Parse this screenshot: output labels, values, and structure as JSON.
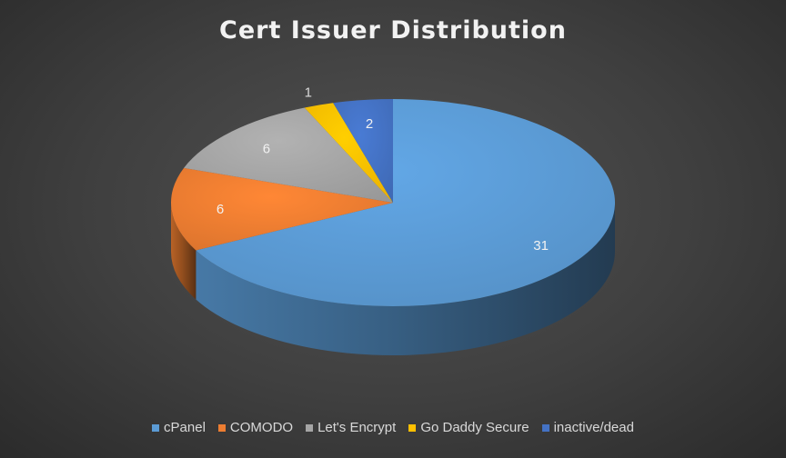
{
  "chart_data": {
    "type": "pie",
    "title": "Cert Issuer Distribution",
    "style": "3d",
    "slices": [
      {
        "label": "cPanel",
        "value": 31,
        "color": "#5b9bd5"
      },
      {
        "label": "COMODO",
        "value": 6,
        "color": "#ed7d31"
      },
      {
        "label": "Let's Encrypt",
        "value": 6,
        "color": "#a5a5a5"
      },
      {
        "label": "Go Daddy Secure",
        "value": 1,
        "color": "#ffc000"
      },
      {
        "label": "inactive/dead",
        "value": 2,
        "color": "#4472c4"
      }
    ],
    "legend_position": "bottom"
  }
}
